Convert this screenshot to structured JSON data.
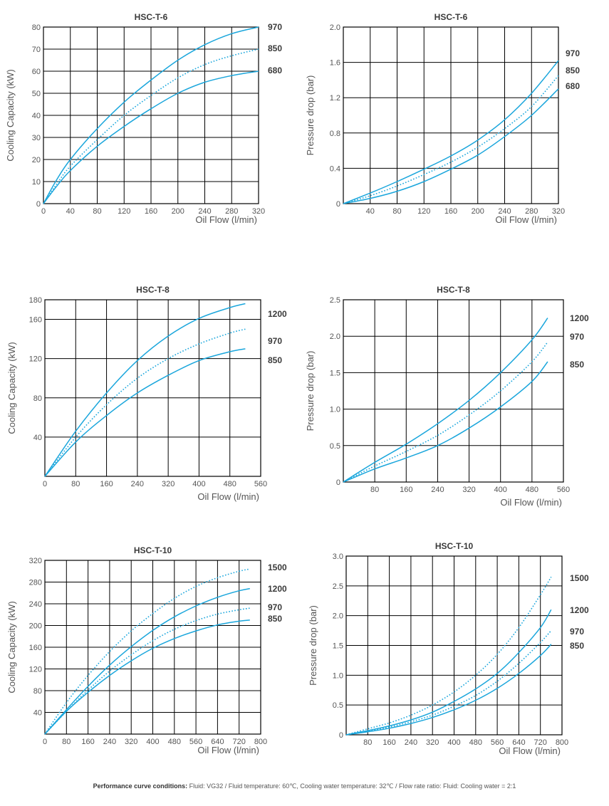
{
  "footer": {
    "label": "Performance curve conditions:",
    "text": " Fluid: VG32 / Fluid temperature: 60℃, Cooling water temperature: 32℃ / Flow rate ratio: Fluid: Cooling water = 2:1"
  },
  "colors": {
    "curve": "#1aa6dc",
    "grid": "#000000"
  },
  "chart_data": [
    {
      "type": "line",
      "title": "HSC-T-6",
      "xlabel": "Oil Flow (l/min)",
      "ylabel": "Cooling Capacity  (kW)",
      "xlim": [
        0,
        320
      ],
      "ylim": [
        0,
        80
      ],
      "grid": true,
      "xticks": [
        0,
        40,
        80,
        120,
        160,
        200,
        240,
        280,
        320
      ],
      "yticks": [
        0,
        10,
        20,
        30,
        40,
        50,
        60,
        70,
        80
      ],
      "series": [
        {
          "name": "970",
          "style": "solid",
          "x": [
            0,
            20,
            40,
            80,
            120,
            160,
            200,
            240,
            280,
            320
          ],
          "y": [
            0,
            11,
            20,
            34,
            46,
            56,
            65,
            72,
            77,
            80
          ]
        },
        {
          "name": "850",
          "style": "dotted",
          "x": [
            0,
            20,
            40,
            80,
            120,
            160,
            200,
            240,
            280,
            320
          ],
          "y": [
            0,
            9,
            17,
            29,
            40,
            49,
            57,
            63,
            67,
            70
          ]
        },
        {
          "name": "680",
          "style": "solid",
          "x": [
            0,
            20,
            40,
            80,
            120,
            160,
            200,
            240,
            280,
            320
          ],
          "y": [
            0,
            8,
            15,
            26,
            35,
            43,
            50,
            55,
            58,
            60
          ]
        }
      ]
    },
    {
      "type": "line",
      "title": "HSC-T-6",
      "xlabel": "Oil Flow (l/min)",
      "ylabel": "Pressure drop  (bar)",
      "xlim": [
        0,
        320
      ],
      "ylim": [
        0,
        2.0
      ],
      "grid": true,
      "xticks": [
        40,
        80,
        120,
        160,
        200,
        240,
        280,
        320
      ],
      "yticks": [
        0,
        0.4,
        0.8,
        1.2,
        1.6,
        2.0
      ],
      "ytick_labels": [
        "0",
        "0.4",
        "0.8",
        "1.2",
        "1.6",
        "2.0"
      ],
      "series": [
        {
          "name": "970",
          "style": "solid",
          "x": [
            0,
            40,
            80,
            120,
            160,
            200,
            240,
            280,
            320
          ],
          "y": [
            0,
            0.12,
            0.25,
            0.39,
            0.54,
            0.72,
            0.95,
            1.25,
            1.62
          ]
        },
        {
          "name": "850",
          "style": "dotted",
          "x": [
            0,
            40,
            80,
            120,
            160,
            200,
            240,
            280,
            320
          ],
          "y": [
            0,
            0.09,
            0.2,
            0.33,
            0.47,
            0.64,
            0.85,
            1.1,
            1.45
          ]
        },
        {
          "name": "680",
          "style": "solid",
          "x": [
            0,
            40,
            80,
            120,
            160,
            200,
            240,
            280,
            320
          ],
          "y": [
            0,
            0.06,
            0.14,
            0.25,
            0.39,
            0.55,
            0.76,
            1.0,
            1.3
          ]
        }
      ]
    },
    {
      "type": "line",
      "title": "HSC-T-8",
      "xlabel": "Oil Flow (l/min)",
      "ylabel": "Cooling Capacity  (kW)",
      "xlim": [
        0,
        560
      ],
      "ylim": [
        0,
        180
      ],
      "grid": true,
      "xticks": [
        0,
        80,
        160,
        240,
        320,
        400,
        480,
        560
      ],
      "yticks": [
        40,
        80,
        120,
        160,
        180
      ],
      "series": [
        {
          "name": "1200",
          "style": "solid",
          "x": [
            0,
            80,
            160,
            240,
            320,
            400,
            480,
            520
          ],
          "y": [
            0,
            46,
            85,
            118,
            143,
            161,
            172,
            176
          ]
        },
        {
          "name": "970",
          "style": "dotted",
          "x": [
            0,
            80,
            160,
            240,
            320,
            400,
            480,
            520
          ],
          "y": [
            0,
            40,
            73,
            100,
            120,
            135,
            146,
            150
          ]
        },
        {
          "name": "850",
          "style": "solid",
          "x": [
            0,
            80,
            160,
            240,
            320,
            400,
            480,
            520
          ],
          "y": [
            0,
            35,
            62,
            85,
            103,
            118,
            127,
            130
          ]
        }
      ]
    },
    {
      "type": "line",
      "title": "HSC-T-8",
      "xlabel": "Oil Flow (l/min)",
      "ylabel": "Pressure drop  (bar)",
      "xlim": [
        0,
        560
      ],
      "ylim": [
        0,
        2.5
      ],
      "grid": true,
      "xticks": [
        80,
        160,
        240,
        320,
        400,
        480,
        560
      ],
      "yticks": [
        0,
        0.5,
        1.0,
        1.5,
        2.0,
        2.5
      ],
      "ytick_labels": [
        "0",
        "0.5",
        "1.0",
        "1.5",
        "2.0",
        "2.5"
      ],
      "series": [
        {
          "name": "1200",
          "style": "solid",
          "x": [
            0,
            80,
            160,
            240,
            320,
            400,
            480,
            520
          ],
          "y": [
            0,
            0.27,
            0.52,
            0.8,
            1.12,
            1.5,
            1.95,
            2.25
          ]
        },
        {
          "name": "970",
          "style": "dotted",
          "x": [
            0,
            80,
            160,
            240,
            320,
            400,
            480,
            520
          ],
          "y": [
            0,
            0.22,
            0.42,
            0.64,
            0.92,
            1.25,
            1.65,
            1.92
          ]
        },
        {
          "name": "850",
          "style": "solid",
          "x": [
            0,
            80,
            160,
            240,
            320,
            400,
            480,
            520
          ],
          "y": [
            0,
            0.18,
            0.33,
            0.5,
            0.74,
            1.03,
            1.38,
            1.65
          ]
        }
      ]
    },
    {
      "type": "line",
      "title": "HSC-T-10",
      "xlabel": "Oil Flow (l/min)",
      "ylabel": "Cooling Capacity  (kW)",
      "xlim": [
        0,
        800
      ],
      "ylim": [
        0,
        320
      ],
      "grid": true,
      "xticks": [
        0,
        80,
        160,
        240,
        320,
        400,
        480,
        560,
        640,
        720,
        800
      ],
      "yticks": [
        40,
        80,
        120,
        160,
        200,
        240,
        280,
        320
      ],
      "series": [
        {
          "name": "1500",
          "style": "dotted",
          "x": [
            0,
            80,
            160,
            240,
            320,
            400,
            480,
            560,
            640,
            720,
            760
          ],
          "y": [
            0,
            58,
            108,
            152,
            190,
            222,
            250,
            272,
            288,
            300,
            304
          ]
        },
        {
          "name": "1200",
          "style": "solid",
          "x": [
            0,
            80,
            160,
            240,
            320,
            400,
            480,
            560,
            640,
            720,
            760
          ],
          "y": [
            0,
            45,
            88,
            127,
            161,
            191,
            216,
            236,
            252,
            264,
            268
          ]
        },
        {
          "name": "970",
          "style": "dotted",
          "x": [
            0,
            80,
            160,
            240,
            320,
            400,
            480,
            560,
            640,
            720,
            760
          ],
          "y": [
            0,
            42,
            81,
            116,
            146,
            172,
            193,
            209,
            221,
            229,
            232
          ]
        },
        {
          "name": "850",
          "style": "solid",
          "x": [
            0,
            80,
            160,
            240,
            320,
            400,
            480,
            560,
            640,
            720,
            760
          ],
          "y": [
            0,
            42,
            77,
            108,
            135,
            158,
            176,
            190,
            201,
            208,
            210
          ]
        }
      ]
    },
    {
      "type": "line",
      "title": "HSC-T-10",
      "xlabel": "Oil Flow (l/min)",
      "ylabel": "Pressure drop  (bar)",
      "xlim": [
        0,
        800
      ],
      "ylim": [
        0,
        3.0
      ],
      "grid": true,
      "xticks": [
        80,
        160,
        240,
        320,
        400,
        480,
        560,
        640,
        720,
        800
      ],
      "yticks": [
        0,
        0.5,
        1.0,
        1.5,
        2.0,
        2.5,
        3.0
      ],
      "ytick_labels": [
        "0",
        "0.5",
        "1.0",
        "1.5",
        "2.0",
        "2.5",
        "3.0"
      ],
      "series": [
        {
          "name": "1500",
          "style": "dotted",
          "x": [
            0,
            80,
            160,
            240,
            320,
            400,
            480,
            560,
            640,
            720,
            760
          ],
          "y": [
            0,
            0.1,
            0.2,
            0.33,
            0.5,
            0.72,
            1.0,
            1.35,
            1.8,
            2.35,
            2.65
          ]
        },
        {
          "name": "1200",
          "style": "solid",
          "x": [
            0,
            80,
            160,
            240,
            320,
            400,
            480,
            560,
            640,
            720,
            760
          ],
          "y": [
            0,
            0.07,
            0.15,
            0.25,
            0.38,
            0.56,
            0.77,
            1.03,
            1.38,
            1.8,
            2.1
          ]
        },
        {
          "name": "970",
          "style": "dotted",
          "x": [
            0,
            80,
            160,
            240,
            320,
            400,
            480,
            560,
            640,
            720,
            760
          ],
          "y": [
            0,
            0.06,
            0.13,
            0.22,
            0.33,
            0.48,
            0.66,
            0.9,
            1.2,
            1.55,
            1.75
          ]
        },
        {
          "name": "850",
          "style": "solid",
          "x": [
            0,
            80,
            160,
            240,
            320,
            400,
            480,
            560,
            640,
            720,
            760
          ],
          "y": [
            0,
            0.05,
            0.11,
            0.19,
            0.29,
            0.42,
            0.58,
            0.78,
            1.03,
            1.33,
            1.52
          ]
        }
      ]
    }
  ]
}
